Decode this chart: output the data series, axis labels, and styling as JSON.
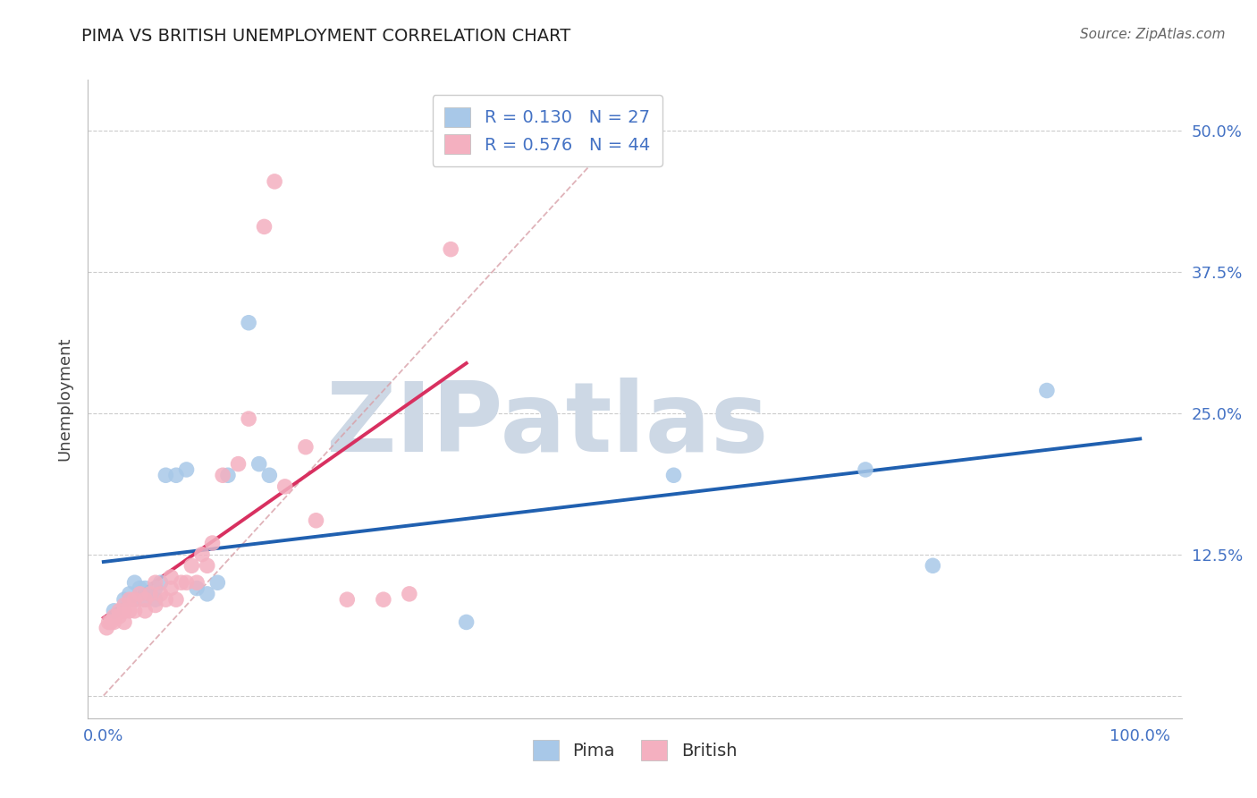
{
  "title": "PIMA VS BRITISH UNEMPLOYMENT CORRELATION CHART",
  "source": "Source: ZipAtlas.com",
  "ylabel": "Unemployment",
  "y_ticks": [
    0.0,
    0.125,
    0.25,
    0.375,
    0.5
  ],
  "y_tick_labels": [
    "",
    "12.5%",
    "25.0%",
    "37.5%",
    "50.0%"
  ],
  "x_tick_labels": [
    "0.0%",
    "100.0%"
  ],
  "xlim": [
    -0.015,
    1.04
  ],
  "ylim": [
    -0.02,
    0.545
  ],
  "pima_color": "#a8c8e8",
  "british_color": "#f4b0c0",
  "pima_line_color": "#2060b0",
  "british_line_color": "#d83060",
  "diagonal_color": "#d8a0a8",
  "legend_pima_R": "0.130",
  "legend_pima_N": "27",
  "legend_british_R": "0.576",
  "legend_british_N": "44",
  "pima_x": [
    0.01,
    0.02,
    0.025,
    0.03,
    0.03,
    0.035,
    0.04,
    0.04,
    0.045,
    0.05,
    0.05,
    0.055,
    0.06,
    0.07,
    0.08,
    0.09,
    0.1,
    0.11,
    0.12,
    0.14,
    0.15,
    0.16,
    0.35,
    0.55,
    0.735,
    0.8,
    0.91
  ],
  "pima_y": [
    0.075,
    0.085,
    0.09,
    0.085,
    0.1,
    0.095,
    0.085,
    0.095,
    0.09,
    0.085,
    0.095,
    0.1,
    0.195,
    0.195,
    0.2,
    0.095,
    0.09,
    0.1,
    0.195,
    0.33,
    0.205,
    0.195,
    0.065,
    0.195,
    0.2,
    0.115,
    0.27
  ],
  "british_x": [
    0.003,
    0.005,
    0.007,
    0.01,
    0.01,
    0.015,
    0.015,
    0.02,
    0.02,
    0.02,
    0.025,
    0.025,
    0.03,
    0.03,
    0.035,
    0.04,
    0.04,
    0.045,
    0.05,
    0.05,
    0.055,
    0.06,
    0.065,
    0.065,
    0.07,
    0.075,
    0.08,
    0.085,
    0.09,
    0.095,
    0.1,
    0.105,
    0.115,
    0.13,
    0.14,
    0.155,
    0.165,
    0.175,
    0.195,
    0.205,
    0.235,
    0.27,
    0.295,
    0.335
  ],
  "british_y": [
    0.06,
    0.065,
    0.065,
    0.065,
    0.07,
    0.07,
    0.075,
    0.065,
    0.075,
    0.08,
    0.075,
    0.085,
    0.075,
    0.085,
    0.09,
    0.075,
    0.085,
    0.09,
    0.08,
    0.1,
    0.09,
    0.085,
    0.095,
    0.105,
    0.085,
    0.1,
    0.1,
    0.115,
    0.1,
    0.125,
    0.115,
    0.135,
    0.195,
    0.205,
    0.245,
    0.415,
    0.455,
    0.185,
    0.22,
    0.155,
    0.085,
    0.085,
    0.09,
    0.395
  ],
  "background_color": "#ffffff",
  "watermark_text": "ZIPatlas",
  "watermark_color": "#cdd8e5",
  "title_color": "#222222",
  "axis_label_color": "#4472C4",
  "source_color": "#666666",
  "grid_color": "#cccccc",
  "pima_legend_label": "Pima",
  "british_legend_label": "British"
}
